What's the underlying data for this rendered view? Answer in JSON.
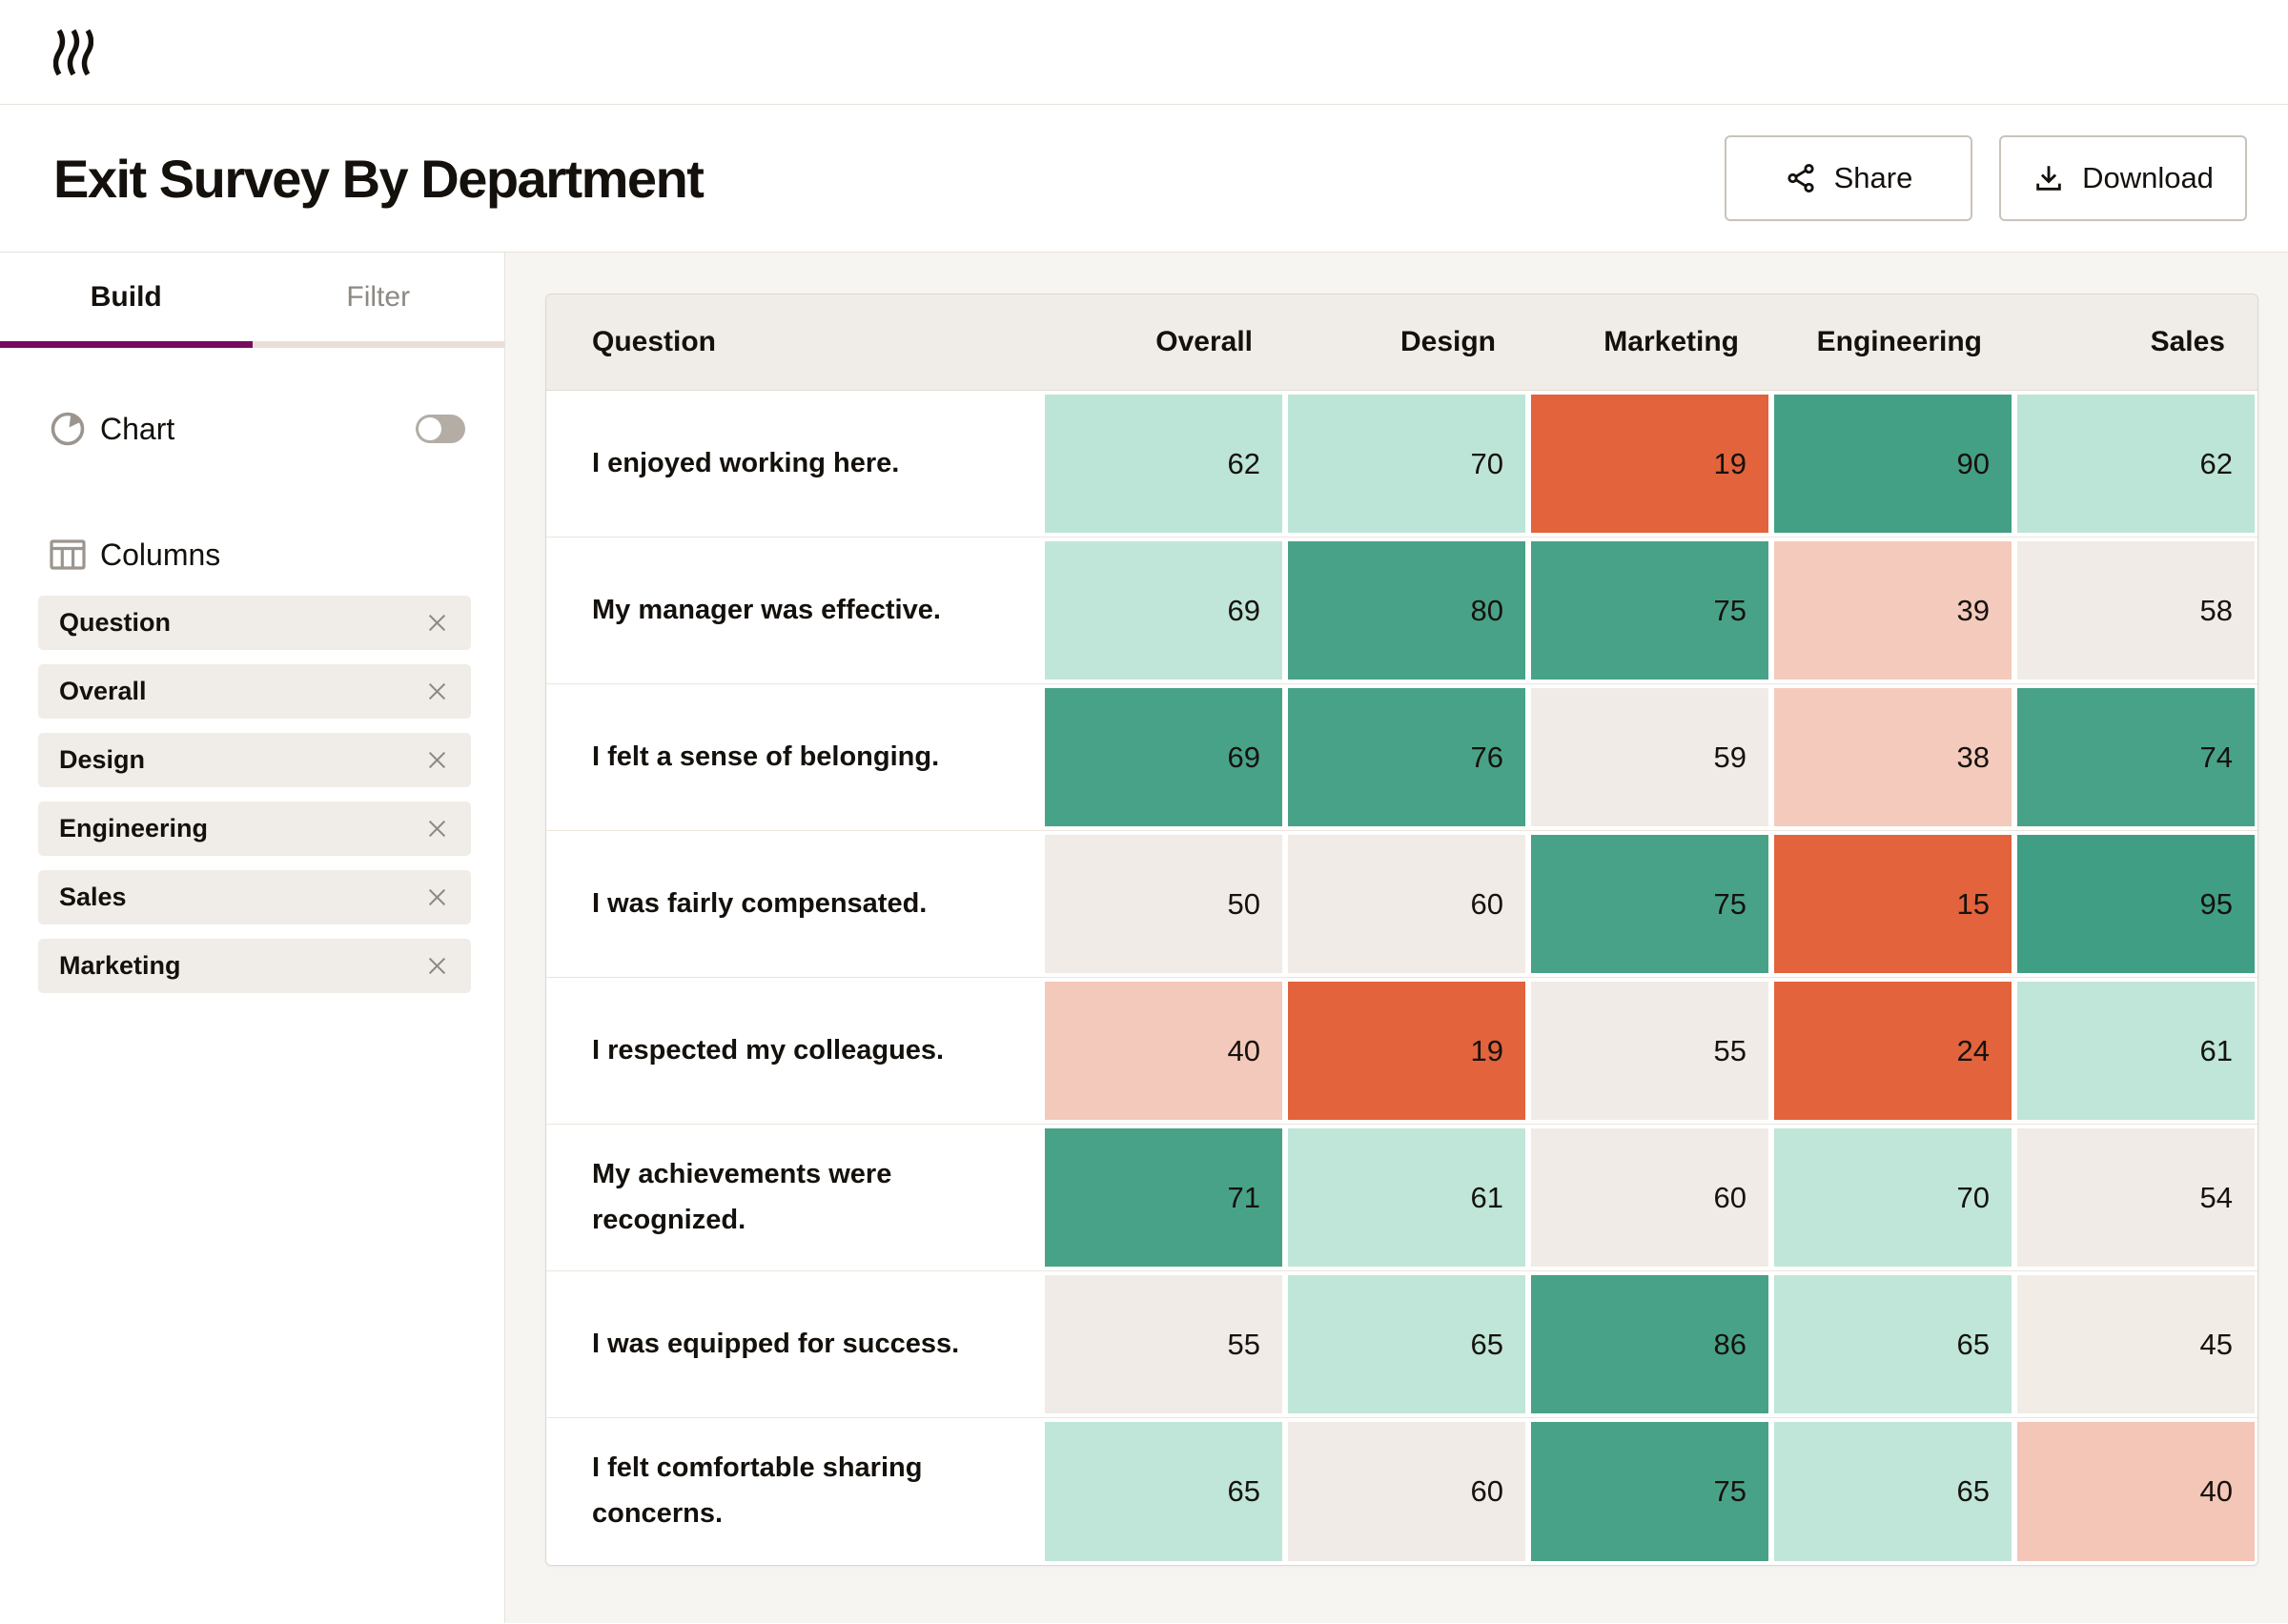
{
  "brand": {
    "logo_name": "rows-wave-logo"
  },
  "header": {
    "title": "Exit Survey By Department",
    "share_label": "Share",
    "download_label": "Download"
  },
  "sidebar": {
    "tabs": {
      "build": "Build",
      "filter": "Filter",
      "active": "Build"
    },
    "chart": {
      "label": "Chart",
      "enabled": false
    },
    "columns_label": "Columns",
    "column_chips": [
      "Question",
      "Overall",
      "Design",
      "Engineering",
      "Sales",
      "Marketing"
    ]
  },
  "table": {
    "columns": [
      "Question",
      "Overall",
      "Design",
      "Marketing",
      "Engineering",
      "Sales"
    ],
    "rows": [
      {
        "question": "I enjoyed working here.",
        "values": [
          62,
          70,
          19,
          90,
          62
        ],
        "colors": [
          "#bce5d7",
          "#bce5d7",
          "#e2633c",
          "#43a085",
          "#bce5d7"
        ]
      },
      {
        "question": "My manager was effective.",
        "values": [
          69,
          80,
          75,
          39,
          58
        ],
        "colors": [
          "#c0e6d9",
          "#48a288",
          "#48a288",
          "#f4cabc",
          "#f0ebe6"
        ]
      },
      {
        "question": "I felt a sense of belonging.",
        "values": [
          69,
          76,
          59,
          38,
          74
        ],
        "colors": [
          "#48a288",
          "#48a288",
          "#f0ebe6",
          "#f4cabc",
          "#48a288"
        ]
      },
      {
        "question": "I was fairly compensated.",
        "values": [
          50,
          60,
          75,
          15,
          95
        ],
        "colors": [
          "#f0ebe6",
          "#f0ebe6",
          "#48a288",
          "#e2633c",
          "#3f9e83"
        ]
      },
      {
        "question": "I respected my colleagues.",
        "values": [
          40,
          19,
          55,
          24,
          61
        ],
        "colors": [
          "#f3c9bb",
          "#e2633c",
          "#f0ebe6",
          "#e2633c",
          "#bfe6d8"
        ]
      },
      {
        "question": "My achievements were recognized.",
        "values": [
          71,
          61,
          60,
          70,
          54
        ],
        "colors": [
          "#48a288",
          "#bfe6d8",
          "#f0ebe6",
          "#bfe6d8",
          "#f0ebe6"
        ]
      },
      {
        "question": "I was equipped for success.",
        "values": [
          55,
          65,
          86,
          65,
          45
        ],
        "colors": [
          "#f0ebe6",
          "#bfe6d8",
          "#48a288",
          "#bfe6d8",
          "#f1ece6"
        ]
      },
      {
        "question": "I felt comfortable sharing concerns.",
        "values": [
          65,
          60,
          75,
          65,
          40
        ],
        "colors": [
          "#bfe6d8",
          "#f0ebe6",
          "#48a288",
          "#bfe6d8",
          "#f3c6b7"
        ]
      }
    ]
  },
  "colors": {
    "accent_tab": "#770b5e",
    "heat_high": "#43a085",
    "heat_mid_high": "#bfe6d8",
    "heat_neutral": "#f0ebe6",
    "heat_mid_low": "#f4cabc",
    "heat_low": "#e2633c",
    "header_bg": "#f0ece7",
    "main_bg": "#f7f5f2"
  }
}
